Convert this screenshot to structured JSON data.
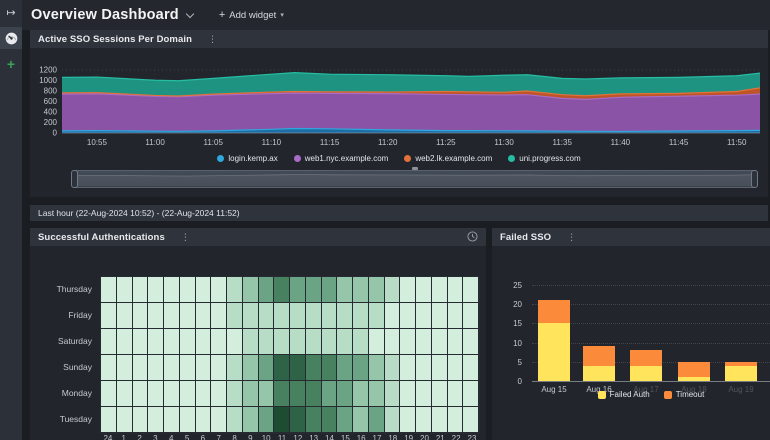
{
  "app": {
    "title": "Overview Dashboard",
    "add_widget_plus": "+",
    "add_widget_label": "Add widget",
    "add_widget_caret": "▾"
  },
  "sidebar": {
    "collapse_icon": "↦",
    "add_label": "+"
  },
  "widgets": {
    "sso": {
      "title": "Active SSO Sessions Per Domain",
      "menu_icon": "⋮"
    },
    "time_range_label": "Last hour (22-Aug-2024 10:52) - (22-Aug-2024 11:52)",
    "auth": {
      "title": "Successful Authentications",
      "menu_icon": "⋮"
    },
    "failed": {
      "title": "Failed SSO",
      "menu_icon": "⋮"
    }
  },
  "chart_data": [
    {
      "type": "area",
      "title": "Active SSO Sessions Per Domain",
      "stacked": true,
      "ylim": [
        0,
        1200
      ],
      "yticks": [
        0,
        200,
        400,
        600,
        800,
        1000,
        1200
      ],
      "x_minutes": [
        0,
        3,
        8,
        10,
        13,
        18,
        20,
        23,
        28,
        33,
        35,
        38,
        40,
        43,
        45,
        48,
        53,
        58,
        60
      ],
      "tick_minutes": [
        3,
        8,
        13,
        18,
        23,
        28,
        33,
        38,
        43,
        48,
        53,
        58
      ],
      "tick_labels": [
        "10:55",
        "11:00",
        "11:05",
        "11:10",
        "11:15",
        "11:20",
        "11:25",
        "11:30",
        "11:35",
        "11:40",
        "11:45",
        "11:50"
      ],
      "legend_position": "bottom",
      "grid": true,
      "series": [
        {
          "name": "login.kemp.ax",
          "fill": "#1e6ea6",
          "line": "#2fa8dd",
          "values": [
            40,
            45,
            35,
            32,
            40,
            70,
            85,
            80,
            60,
            45,
            45,
            42,
            40,
            35,
            32,
            30,
            38,
            45,
            50
          ]
        },
        {
          "name": "web1.nyc.example.com",
          "fill": "#8a53a5",
          "line": "#a76cc7",
          "values": [
            700,
            700,
            665,
            658,
            680,
            680,
            675,
            675,
            690,
            690,
            685,
            683,
            690,
            625,
            608,
            650,
            662,
            675,
            690
          ]
        },
        {
          "name": "web2.lk.example.com",
          "fill": "#bf5426",
          "line": "#e2713a",
          "values": [
            25,
            25,
            15,
            15,
            20,
            30,
            30,
            30,
            30,
            55,
            55,
            50,
            70,
            70,
            70,
            65,
            55,
            70,
            120
          ]
        },
        {
          "name": "uni.progress.com",
          "fill": "#1f9381",
          "line": "#25bda4",
          "values": [
            295,
            295,
            290,
            290,
            300,
            340,
            360,
            335,
            330,
            300,
            295,
            325,
            310,
            310,
            320,
            305,
            305,
            300,
            280
          ]
        }
      ]
    },
    {
      "type": "heatmap",
      "title": "Successful Authentications",
      "rows": [
        "Thursday",
        "Friday",
        "Saturday",
        "Sunday",
        "Monday",
        "Tuesday"
      ],
      "columns": [
        "24",
        "1",
        "2",
        "3",
        "4",
        "5",
        "6",
        "7",
        "8",
        "9",
        "10",
        "11",
        "12",
        "13",
        "14",
        "15",
        "16",
        "17",
        "18",
        "19",
        "20",
        "21",
        "22",
        "23"
      ],
      "palette": [
        "#d3eedd",
        "#b7ddc6",
        "#95c6aa",
        "#6aa485",
        "#47815f",
        "#2e6347",
        "#1d4c32"
      ],
      "values": [
        [
          0,
          0,
          0,
          0,
          0,
          0,
          0,
          0,
          1,
          2,
          3,
          4,
          3,
          3,
          3,
          2,
          2,
          2,
          1,
          0,
          0,
          0,
          0,
          0
        ],
        [
          0,
          0,
          0,
          0,
          0,
          0,
          0,
          0,
          1,
          1,
          1,
          1,
          1,
          1,
          1,
          1,
          1,
          1,
          0,
          0,
          0,
          0,
          0,
          0
        ],
        [
          0,
          0,
          0,
          0,
          0,
          0,
          0,
          0,
          0,
          1,
          1,
          1,
          1,
          1,
          1,
          1,
          1,
          0,
          0,
          0,
          0,
          0,
          0,
          0
        ],
        [
          0,
          0,
          0,
          0,
          0,
          0,
          0,
          0,
          1,
          2,
          3,
          5,
          5,
          4,
          4,
          3,
          3,
          2,
          1,
          0,
          0,
          0,
          0,
          0
        ],
        [
          0,
          0,
          0,
          0,
          0,
          0,
          0,
          0,
          1,
          2,
          2,
          4,
          4,
          4,
          3,
          3,
          2,
          2,
          1,
          0,
          0,
          0,
          0,
          0
        ],
        [
          0,
          0,
          0,
          0,
          0,
          0,
          0,
          0,
          1,
          2,
          3,
          6,
          5,
          4,
          4,
          3,
          2,
          3,
          1,
          0,
          0,
          0,
          0,
          0
        ]
      ]
    },
    {
      "type": "bar",
      "title": "Failed SSO",
      "stacked": true,
      "ylim": [
        0,
        25
      ],
      "yticks": [
        0,
        5,
        10,
        15,
        20,
        25
      ],
      "categories": [
        "Aug 15",
        "Aug 16",
        "Aug 17",
        "Aug 18",
        "Aug 19"
      ],
      "legend_position": "bottom",
      "series": [
        {
          "name": "Failed Auth",
          "color": "#ffe45c",
          "values": [
            15,
            4,
            4,
            1,
            4
          ]
        },
        {
          "name": "Timeout",
          "color": "#fb8b3a",
          "values": [
            6,
            5,
            4,
            4,
            1
          ]
        }
      ]
    }
  ]
}
